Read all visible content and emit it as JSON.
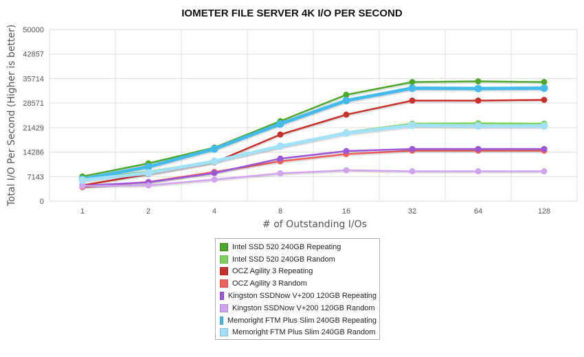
{
  "chart_data": {
    "type": "line",
    "title": "IOMETER FILE SERVER 4K I/O PER SECOND",
    "xlabel": "# of Outstanding I/Os",
    "ylabel": "Total I/O Per Second (Higher is better)",
    "categories": [
      "1",
      "2",
      "4",
      "8",
      "16",
      "32",
      "64",
      "128"
    ],
    "yticks": [
      "0",
      "7143",
      "14286",
      "21429",
      "28571",
      "35714",
      "42857",
      "50000"
    ],
    "ylim": [
      0,
      50000
    ],
    "grid": true,
    "legend_position": "bottom",
    "series": [
      {
        "name": "Intel SSD 520 240GB Repeating",
        "color": "#4ca82a",
        "values": [
          7200,
          11000,
          15600,
          23300,
          31000,
          34700,
          34900,
          34700
        ]
      },
      {
        "name": "Intel SSD 520 240GB Random",
        "color": "#7dd35b",
        "values": [
          6500,
          8600,
          11700,
          16000,
          20100,
          22600,
          22700,
          22600
        ]
      },
      {
        "name": "OCZ Agility 3 Repeating",
        "color": "#c8302c",
        "values": [
          4600,
          7900,
          11300,
          19400,
          25200,
          29300,
          29300,
          29500
        ]
      },
      {
        "name": "OCZ Agility 3 Random",
        "color": "#f0625a",
        "values": [
          4100,
          5600,
          8500,
          11600,
          13700,
          14700,
          14700,
          14700
        ]
      },
      {
        "name": "Kingston SSDNow V+200 120GB Repeating",
        "color": "#9d55d9",
        "values": [
          4500,
          5500,
          8200,
          12400,
          14600,
          15200,
          15200,
          15200
        ]
      },
      {
        "name": "Kingston SSDNow V+200 120GB Random",
        "color": "#cfa4ef",
        "values": [
          4400,
          4600,
          6300,
          8100,
          9000,
          8700,
          8700,
          8700
        ]
      },
      {
        "name": "Memoright FTM Plus Slim 240GB Repeating",
        "color": "#45bbeb",
        "values": [
          6400,
          10000,
          15200,
          22500,
          29300,
          32900,
          32800,
          32900
        ]
      },
      {
        "name": "Memoright FTM Plus Slim 240GB Random",
        "color": "#a2e1f7",
        "values": [
          6100,
          8200,
          11600,
          16000,
          19800,
          22100,
          21900,
          21900
        ]
      }
    ]
  }
}
